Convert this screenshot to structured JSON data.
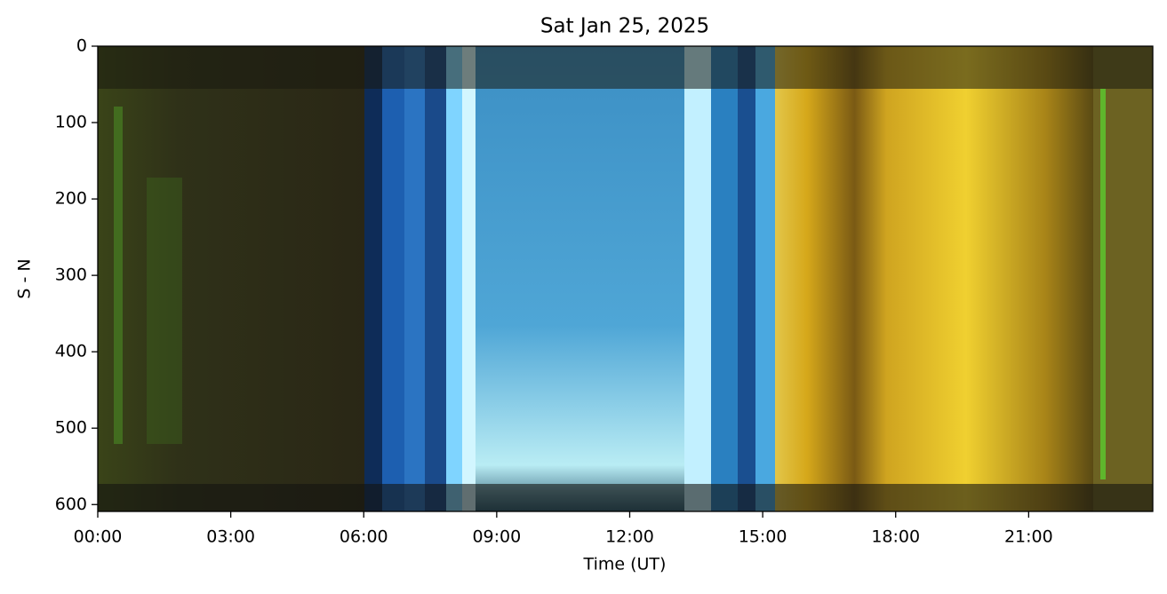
{
  "chart_data": {
    "type": "image",
    "title": "Sat Jan 25, 2025",
    "xlabel": "Time (UT)",
    "ylabel": "S - N",
    "xlim": [
      0,
      23.8
    ],
    "xticks": [
      {
        "value": 0,
        "label": "00:00"
      },
      {
        "value": 3,
        "label": "03:00"
      },
      {
        "value": 6,
        "label": "06:00"
      },
      {
        "value": 9,
        "label": "09:00"
      },
      {
        "value": 12,
        "label": "12:00"
      },
      {
        "value": 15,
        "label": "15:00"
      },
      {
        "value": 18,
        "label": "18:00"
      },
      {
        "value": 21,
        "label": "21:00"
      }
    ],
    "ylim": [
      609,
      0
    ],
    "yticks": [
      0,
      100,
      200,
      300,
      400,
      500,
      600
    ]
  }
}
